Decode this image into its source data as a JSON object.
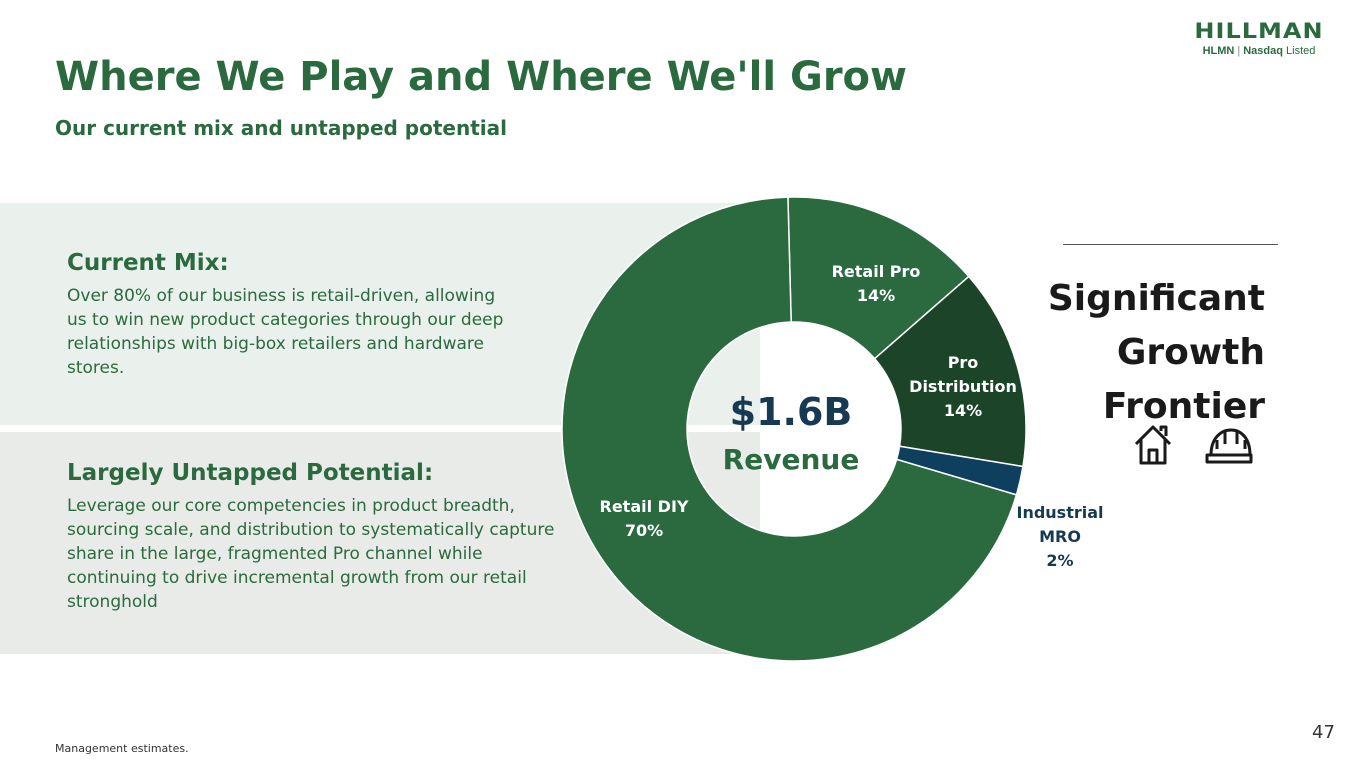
{
  "logo": {
    "word": "HILLMAN",
    "ticker": "HLMN",
    "exchange": "Nasdaq",
    "listed": "Listed"
  },
  "header": {
    "title": "Where We Play and Where We'll Grow",
    "subtitle": "Our current mix and untapped potential"
  },
  "current_mix": {
    "heading": "Current Mix:",
    "body": "Over 80% of our business is retail-driven, allowing us to win new product categories through our deep relationships with big-box retailers and hardware stores."
  },
  "untapped": {
    "heading": "Largely Untapped Potential:",
    "body": "Leverage our core competencies in product breadth, sourcing scale, and distribution to systematically capture share in the large, fragmented Pro channel while continuing to drive incremental growth from our retail stronghold"
  },
  "chart_data": {
    "type": "pie",
    "center_value": "$1.6B",
    "center_label": "Revenue",
    "slices": [
      {
        "name": "Retail Pro",
        "value": 14,
        "label": "14%",
        "color": "#2a6a3e",
        "label_color": "#ffffff"
      },
      {
        "name": "Pro Distribution",
        "value": 14,
        "label": "14%",
        "color": "#1b4429",
        "label_color": "#ffffff"
      },
      {
        "name": "Industrial MRO",
        "value": 2,
        "label": "2%",
        "color": "#0f3f5e",
        "label_color": "#163a52"
      },
      {
        "name": "Retail DIY",
        "value": 70,
        "label": "70%",
        "color": "#2a6a3e",
        "label_color": "#ffffff"
      }
    ]
  },
  "frontier": {
    "lines": [
      "Significant",
      "Growth",
      "Frontier"
    ],
    "icons": [
      "house-icon",
      "hard-hat-icon"
    ]
  },
  "footnote": "Management estimates.",
  "page_number": "47"
}
